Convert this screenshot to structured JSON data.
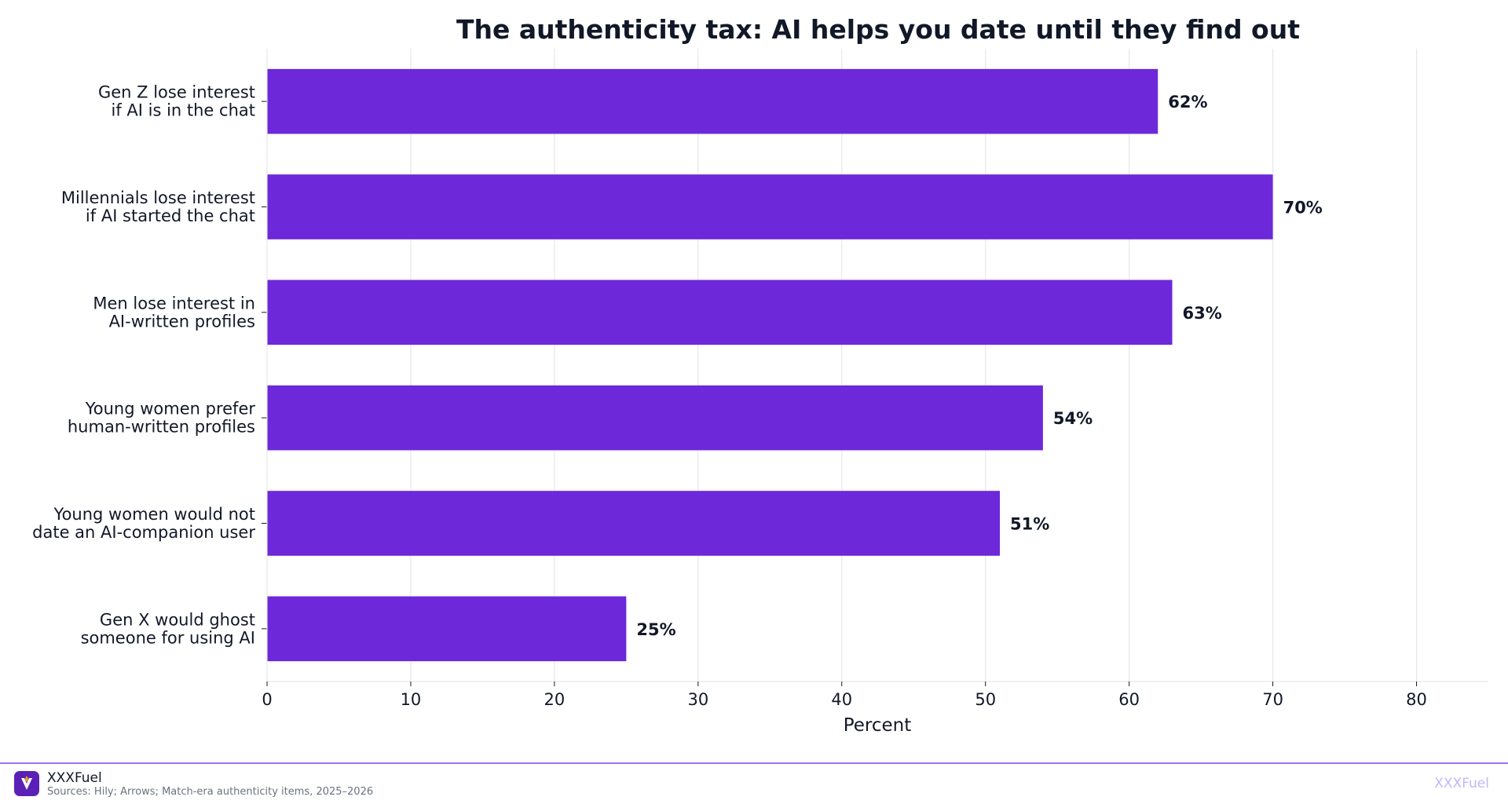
{
  "chart_data": {
    "type": "bar",
    "orientation": "horizontal",
    "title": "The authenticity tax: AI helps you date until they find out",
    "xlabel": "Percent",
    "ylabel": "",
    "xlim": [
      0,
      85
    ],
    "xticks": [
      0,
      10,
      20,
      30,
      40,
      50,
      60,
      70,
      80
    ],
    "grid": "vertical",
    "bar_color": "#6d28d9",
    "categories": [
      [
        "Gen Z lose interest",
        "if AI is in the chat"
      ],
      [
        "Millennials lose interest",
        "if AI started the chat"
      ],
      [
        "Men lose interest in",
        "AI-written profiles"
      ],
      [
        "Young women prefer",
        "human-written profiles"
      ],
      [
        "Young women would not",
        "date an AI-companion user"
      ],
      [
        "Gen X would ghost",
        "someone for using AI"
      ]
    ],
    "values": [
      62,
      70,
      63,
      54,
      51,
      25
    ],
    "value_labels": [
      "62%",
      "70%",
      "63%",
      "54%",
      "51%",
      "25%"
    ]
  },
  "footer": {
    "brand": "XXXFuel",
    "sources": "Sources: Hily; Arrows; Match-era authenticity items, 2025–2026",
    "watermark": "XXXFuel",
    "accent": "#8b5cf6"
  }
}
